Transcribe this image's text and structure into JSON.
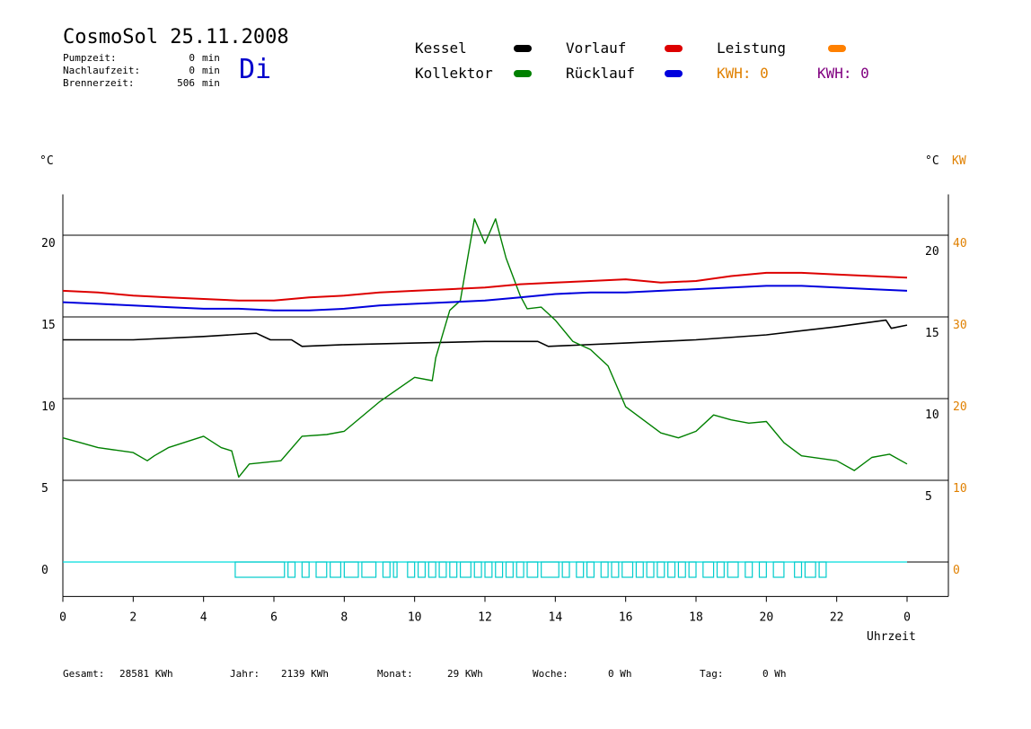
{
  "header": {
    "title": "CosmoSol 25.11.2008",
    "day": "Di",
    "stats": [
      {
        "label": "Pumpzeit:",
        "value": "0",
        "unit": "min"
      },
      {
        "label": "Nachlaufzeit:",
        "value": "0",
        "unit": "min"
      },
      {
        "label": "Brennerzeit:",
        "value": "506",
        "unit": "min"
      }
    ]
  },
  "legend": {
    "items": [
      {
        "label": "Kessel",
        "color": "#000000"
      },
      {
        "label": "Kollektor",
        "color": "#008000"
      },
      {
        "label": "Vorlauf",
        "color": "#dd0000"
      },
      {
        "label": "Rücklauf",
        "color": "#0000dd"
      },
      {
        "label": "Leistung",
        "color": "#ff8000"
      }
    ],
    "kwh": [
      {
        "text": "KWH: 0",
        "color": "#e08000"
      },
      {
        "text": "KWH: 0",
        "color": "#800080"
      }
    ]
  },
  "footer": [
    {
      "label": "Gesamt:",
      "value": "28581 KWh"
    },
    {
      "label": "Jahr:",
      "value": "2139 KWh"
    },
    {
      "label": "Monat:",
      "value": "29 KWh"
    },
    {
      "label": "Woche:",
      "value": "0 Wh"
    },
    {
      "label": "Tag:",
      "value": "0 Wh"
    }
  ],
  "chart_data": {
    "type": "line",
    "xlabel": "Uhrzeit",
    "x_ticks": [
      "0",
      "2",
      "4",
      "6",
      "8",
      "10",
      "12",
      "14",
      "16",
      "18",
      "20",
      "22",
      "0"
    ],
    "x_range": [
      0,
      24
    ],
    "y_left_unit": "°C",
    "y_left_ticks": [
      0,
      5,
      10,
      15,
      20
    ],
    "y_right_unit": "°C",
    "y_right_ticks": [
      5,
      10,
      15,
      20
    ],
    "y_right2_unit": "KW",
    "y_right2_ticks": [
      0,
      10,
      20,
      30,
      40
    ],
    "ylim": [
      -2,
      22.5
    ],
    "grid": "horizontal",
    "series": [
      {
        "name": "Kessel",
        "color": "#000000",
        "x": [
          0,
          2,
          4,
          5.5,
          5.9,
          6.5,
          6.8,
          8,
          10,
          12,
          13.5,
          13.8,
          16,
          18,
          20,
          22,
          23.4,
          23.55,
          24
        ],
        "y": [
          13.6,
          13.6,
          13.8,
          14.0,
          13.6,
          13.6,
          13.2,
          13.3,
          13.4,
          13.5,
          13.5,
          13.2,
          13.4,
          13.6,
          13.9,
          14.4,
          14.8,
          14.3,
          14.5
        ]
      },
      {
        "name": "Kollektor",
        "color": "#008000",
        "x": [
          0,
          0.5,
          1,
          2,
          2.4,
          2.6,
          3,
          4,
          4.5,
          4.8,
          5.0,
          5.3,
          6.2,
          6.8,
          7.5,
          8.0,
          9.0,
          10.0,
          10.5,
          10.6,
          11.0,
          11.3,
          11.5,
          11.7,
          12.0,
          12.3,
          12.6,
          13.0,
          13.2,
          13.6,
          14.0,
          14.5,
          15.0,
          15.5,
          16.0,
          17.0,
          17.5,
          18.0,
          18.5,
          19.0,
          19.5,
          20.0,
          20.5,
          21.0,
          22.0,
          22.5,
          23.0,
          23.5,
          24.0
        ],
        "y": [
          7.6,
          7.3,
          7.0,
          6.7,
          6.2,
          6.5,
          7.0,
          7.7,
          7.0,
          6.8,
          5.2,
          6.0,
          6.2,
          7.7,
          7.8,
          8.0,
          9.8,
          11.3,
          11.1,
          12.5,
          15.4,
          16.0,
          18.5,
          21.0,
          19.5,
          21.0,
          18.6,
          16.3,
          15.5,
          15.6,
          14.8,
          13.5,
          13.0,
          12.0,
          9.5,
          7.9,
          7.6,
          8.0,
          9.0,
          8.7,
          8.5,
          8.6,
          7.3,
          6.5,
          6.2,
          5.6,
          6.4,
          6.6,
          6.0
        ]
      },
      {
        "name": "Vorlauf",
        "color": "#dd0000",
        "x": [
          0,
          1,
          2,
          3,
          4,
          5,
          6,
          7,
          8,
          9,
          10,
          11,
          12,
          13,
          14,
          15,
          16,
          17,
          18,
          19,
          20,
          21,
          22,
          23,
          24
        ],
        "y": [
          16.6,
          16.5,
          16.3,
          16.2,
          16.1,
          16.0,
          16.0,
          16.2,
          16.3,
          16.5,
          16.6,
          16.7,
          16.8,
          17.0,
          17.1,
          17.2,
          17.3,
          17.1,
          17.2,
          17.5,
          17.7,
          17.7,
          17.6,
          17.5,
          17.4
        ]
      },
      {
        "name": "Rücklauf",
        "color": "#0000dd",
        "x": [
          0,
          1,
          2,
          3,
          4,
          5,
          6,
          7,
          8,
          9,
          10,
          11,
          12,
          13,
          14,
          15,
          16,
          17,
          18,
          19,
          20,
          21,
          22,
          23,
          24
        ],
        "y": [
          15.9,
          15.8,
          15.7,
          15.6,
          15.5,
          15.5,
          15.4,
          15.4,
          15.5,
          15.7,
          15.8,
          15.9,
          16.0,
          16.2,
          16.4,
          16.5,
          16.5,
          16.6,
          16.7,
          16.8,
          16.9,
          16.9,
          16.8,
          16.7,
          16.6
        ]
      }
    ],
    "brenner_blocks": [
      [
        4.9,
        6.3
      ],
      [
        6.4,
        6.6
      ],
      [
        6.8,
        7.0
      ],
      [
        7.2,
        7.5
      ],
      [
        7.6,
        7.9
      ],
      [
        8.0,
        8.4
      ],
      [
        8.5,
        8.9
      ],
      [
        9.1,
        9.3
      ],
      [
        9.4,
        9.5
      ],
      [
        9.8,
        10.0
      ],
      [
        10.1,
        10.3
      ],
      [
        10.4,
        10.6
      ],
      [
        10.7,
        10.9
      ],
      [
        11.0,
        11.2
      ],
      [
        11.3,
        11.6
      ],
      [
        11.7,
        11.9
      ],
      [
        12.0,
        12.2
      ],
      [
        12.3,
        12.5
      ],
      [
        12.6,
        12.8
      ],
      [
        12.9,
        13.1
      ],
      [
        13.2,
        13.5
      ],
      [
        13.6,
        14.1
      ],
      [
        14.2,
        14.4
      ],
      [
        14.6,
        14.8
      ],
      [
        14.9,
        15.1
      ],
      [
        15.3,
        15.5
      ],
      [
        15.6,
        15.8
      ],
      [
        15.9,
        16.2
      ],
      [
        16.3,
        16.5
      ],
      [
        16.6,
        16.8
      ],
      [
        16.9,
        17.1
      ],
      [
        17.2,
        17.4
      ],
      [
        17.5,
        17.7
      ],
      [
        17.8,
        18.0
      ],
      [
        18.2,
        18.5
      ],
      [
        18.6,
        18.8
      ],
      [
        18.9,
        19.2
      ],
      [
        19.4,
        19.6
      ],
      [
        19.8,
        20.0
      ],
      [
        20.2,
        20.5
      ],
      [
        20.8,
        21.0
      ],
      [
        21.1,
        21.4
      ],
      [
        21.5,
        21.7
      ]
    ]
  }
}
